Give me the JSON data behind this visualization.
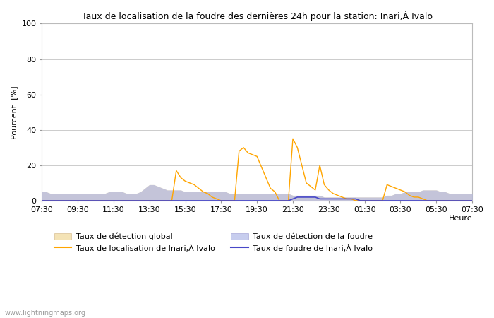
{
  "title": "Taux de localisation de la foudre des dernières 24h pour la station: Inari,À Ivalo",
  "ylabel": "Pourcent  [%]",
  "xlabel": "Heure",
  "xlim_labels": [
    "07:30",
    "09:30",
    "11:30",
    "13:30",
    "15:30",
    "17:30",
    "19:30",
    "21:30",
    "23:30",
    "01:30",
    "03:30",
    "05:30",
    "07:30"
  ],
  "ylim": [
    0,
    100
  ],
  "yticks": [
    0,
    20,
    40,
    60,
    80,
    100
  ],
  "background_color": "#ffffff",
  "plot_bg_color": "#ffffff",
  "grid_color": "#cccccc",
  "watermark": "www.lightningmaps.org",
  "legend": [
    {
      "label": "Taux de détection global",
      "type": "fill",
      "color": "#f0d898",
      "alpha": 0.7
    },
    {
      "label": "Taux de localisation de Inari,À Ivalo",
      "type": "line",
      "color": "#ffa500"
    },
    {
      "label": "Taux de détection de la foudre",
      "type": "fill",
      "color": "#b0b8e8",
      "alpha": 0.7
    },
    {
      "label": "Taux de foudre de Inari,À Ivalo",
      "type": "line",
      "color": "#4848c8"
    }
  ],
  "n_points": 97,
  "global_detection": [
    5,
    5,
    4,
    4,
    4,
    4,
    4,
    4,
    4,
    4,
    4,
    4,
    4,
    4,
    4,
    5,
    5,
    5,
    5,
    4,
    4,
    4,
    5,
    7,
    9,
    9,
    8,
    7,
    6,
    6,
    6,
    6,
    5,
    5,
    5,
    5,
    5,
    5,
    5,
    5,
    5,
    5,
    4,
    4,
    4,
    4,
    4,
    4,
    4,
    4,
    4,
    4,
    4,
    4,
    4,
    4,
    3,
    3,
    3,
    3,
    3,
    3,
    3,
    2,
    2,
    2,
    2,
    2,
    2,
    2,
    2,
    2,
    2,
    2,
    2,
    2,
    2,
    3,
    3,
    4,
    4,
    5,
    5,
    5,
    5,
    6,
    6,
    6,
    6,
    5,
    5,
    4,
    4,
    4,
    4,
    4,
    4
  ],
  "lightning_detection": [
    5,
    5,
    4,
    4,
    4,
    4,
    4,
    4,
    4,
    4,
    4,
    4,
    4,
    4,
    4,
    5,
    5,
    5,
    5,
    4,
    4,
    4,
    5,
    7,
    9,
    9,
    8,
    7,
    6,
    6,
    6,
    6,
    5,
    5,
    5,
    5,
    5,
    5,
    5,
    5,
    5,
    5,
    4,
    4,
    4,
    4,
    4,
    4,
    4,
    4,
    4,
    4,
    4,
    4,
    4,
    4,
    3,
    3,
    3,
    3,
    3,
    3,
    3,
    2,
    2,
    2,
    2,
    2,
    2,
    2,
    2,
    2,
    2,
    2,
    2,
    2,
    2,
    3,
    3,
    4,
    4,
    5,
    5,
    5,
    5,
    6,
    6,
    6,
    6,
    5,
    5,
    4,
    4,
    4,
    4,
    4,
    4
  ],
  "localization_rate": [
    0,
    0,
    0,
    0,
    0,
    0,
    0,
    0,
    0,
    0,
    0,
    0,
    0,
    0,
    0,
    0,
    0,
    0,
    0,
    0,
    0,
    0,
    0,
    0,
    0,
    0,
    0,
    0,
    0,
    0,
    17,
    13,
    11,
    10,
    9,
    7,
    5,
    4,
    2,
    1,
    0,
    0,
    0,
    0,
    28,
    30,
    27,
    26,
    25,
    19,
    13,
    7,
    5,
    0,
    0,
    0,
    35,
    30,
    20,
    10,
    8,
    6,
    20,
    9,
    6,
    4,
    3,
    2,
    1,
    1,
    0,
    0,
    0,
    0,
    0,
    0,
    0,
    9,
    8,
    7,
    6,
    5,
    3,
    2,
    2,
    1,
    0,
    0,
    0,
    0,
    0,
    0,
    0,
    0,
    0,
    0,
    0
  ],
  "foudre_rate": [
    0,
    0,
    0,
    0,
    0,
    0,
    0,
    0,
    0,
    0,
    0,
    0,
    0,
    0,
    0,
    0,
    0,
    0,
    0,
    0,
    0,
    0,
    0,
    0,
    0,
    0,
    0,
    0,
    0,
    0,
    0,
    0,
    0,
    0,
    0,
    0,
    0,
    0,
    0,
    0,
    0,
    0,
    0,
    0,
    0,
    0,
    0,
    0,
    0,
    0,
    0,
    0,
    0,
    0,
    0,
    0,
    1,
    2,
    2,
    2,
    2,
    2,
    1,
    1,
    1,
    1,
    1,
    1,
    1,
    1,
    1,
    0,
    0,
    0,
    0,
    0,
    0,
    0,
    0,
    0,
    0,
    0,
    0,
    0,
    0,
    0,
    0,
    0,
    0,
    0,
    0,
    0,
    0,
    0,
    0,
    0,
    0
  ]
}
